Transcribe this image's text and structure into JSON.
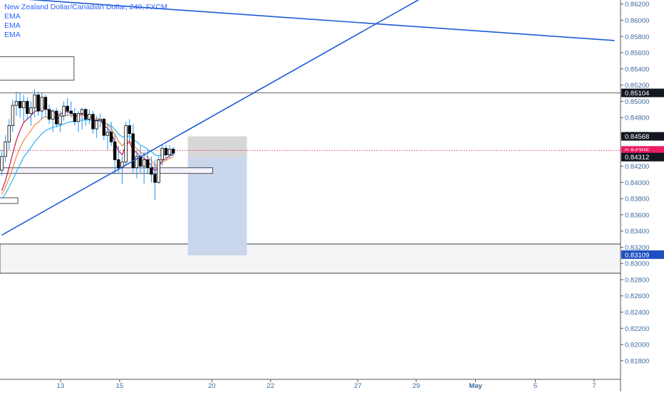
{
  "header": {
    "symbol_title": "New Zealand Dollar/Canadian Dollar, 240, FXCM",
    "indicators": [
      "EMA",
      "EMA",
      "EMA"
    ]
  },
  "colors": {
    "background": "#ffffff",
    "trendline": "#1e5bd6",
    "candle_body": "#000000",
    "candle_wick": "#2196f3",
    "ema_fast": "#c2185b",
    "ema_mid": "#ef8a3a",
    "ema_slow": "#29b6f6",
    "axis_text": "#3c6a9e",
    "current_price_bg": "#e91e63",
    "label_dark_bg": "#131722",
    "position_fill": "#c9d6ec",
    "position_top_fill": "#d7d7d7",
    "zone_fill": "#f5f5f7",
    "current_price_line": "#e91e63"
  },
  "chart_data": {
    "type": "candlestick",
    "title": "New Zealand Dollar/Canadian Dollar, 240, FXCM",
    "ylim": [
      0.8156,
      0.8625
    ],
    "y_ticks": [
      "0.86200",
      "0.86000",
      "0.85800",
      "0.85600",
      "0.85400",
      "0.85200",
      "0.85000",
      "0.84800",
      "0.84600",
      "0.84400",
      "0.84200",
      "0.84000",
      "0.83800",
      "0.83600",
      "0.83400",
      "0.83200",
      "0.83000",
      "0.82800",
      "0.82600",
      "0.82400",
      "0.82200",
      "0.82000",
      "0.81800"
    ],
    "x_ticks": [
      "13",
      "15",
      "20",
      "22",
      "27",
      "29",
      "May",
      "5",
      "7"
    ],
    "x_tick_index": [
      16.1,
      32.3,
      57.6,
      73.7,
      97.6,
      113.6,
      129.9,
      146.3,
      162.4
    ],
    "price_labels": [
      {
        "value": "0.85104",
        "style": "dark"
      },
      {
        "value": "0.84568",
        "style": "dark"
      },
      {
        "value": "0.84395",
        "style": "current"
      },
      {
        "value": "02:38:31",
        "style": "current_timer"
      },
      {
        "value": "0.84312",
        "style": "dark"
      },
      {
        "value": "0.83109",
        "style": "blue"
      }
    ],
    "horizontal_lines": [
      0.85104,
      0.8324,
      0.8288
    ],
    "current_price": 0.84395,
    "trendlines": [
      {
        "x1": 0,
        "y1": 0.8628,
        "x2": 168.0,
        "y2": 0.8575
      },
      {
        "x1": 0,
        "y1": 0.8335,
        "x2": 124.0,
        "y2": 0.865
      }
    ],
    "rectangles": [
      {
        "x1": -3,
        "x2": 19.8,
        "top": 0.8555,
        "bottom": 0.8526,
        "kind": "note"
      },
      {
        "x1": -3,
        "x2": 57.8,
        "top": 0.8418,
        "bottom": 0.8411,
        "kind": "note"
      },
      {
        "x1": -3,
        "x2": 4.4,
        "top": 0.8381,
        "bottom": 0.8374,
        "kind": "note"
      },
      {
        "x1": -3,
        "x2": 172,
        "top": 0.8324,
        "bottom": 0.8288,
        "kind": "zone"
      }
    ],
    "position": {
      "x1": 51.0,
      "x2": 67.2,
      "entry": 0.84312,
      "stop": 0.84568,
      "target": 0.831
    },
    "candles": [
      {
        "o": 0.8415,
        "h": 0.844,
        "l": 0.8408,
        "c": 0.8432
      },
      {
        "o": 0.8432,
        "h": 0.8458,
        "l": 0.8425,
        "c": 0.845
      },
      {
        "o": 0.845,
        "h": 0.8478,
        "l": 0.844,
        "c": 0.847
      },
      {
        "o": 0.847,
        "h": 0.8502,
        "l": 0.8462,
        "c": 0.8495
      },
      {
        "o": 0.8495,
        "h": 0.8512,
        "l": 0.8482,
        "c": 0.85
      },
      {
        "o": 0.85,
        "h": 0.851,
        "l": 0.848,
        "c": 0.8492
      },
      {
        "o": 0.8492,
        "h": 0.8508,
        "l": 0.8475,
        "c": 0.85
      },
      {
        "o": 0.85,
        "h": 0.8505,
        "l": 0.8478,
        "c": 0.8485
      },
      {
        "o": 0.8485,
        "h": 0.85,
        "l": 0.847,
        "c": 0.8492
      },
      {
        "o": 0.8492,
        "h": 0.8515,
        "l": 0.848,
        "c": 0.8508
      },
      {
        "o": 0.8508,
        "h": 0.8512,
        "l": 0.8482,
        "c": 0.8488
      },
      {
        "o": 0.8488,
        "h": 0.851,
        "l": 0.8478,
        "c": 0.8505
      },
      {
        "o": 0.8505,
        "h": 0.8508,
        "l": 0.848,
        "c": 0.849
      },
      {
        "o": 0.849,
        "h": 0.8496,
        "l": 0.8472,
        "c": 0.8478
      },
      {
        "o": 0.8478,
        "h": 0.849,
        "l": 0.8462,
        "c": 0.8488
      },
      {
        "o": 0.8488,
        "h": 0.8492,
        "l": 0.8468,
        "c": 0.8472
      },
      {
        "o": 0.8472,
        "h": 0.8488,
        "l": 0.8462,
        "c": 0.8482
      },
      {
        "o": 0.8482,
        "h": 0.85,
        "l": 0.8476,
        "c": 0.8494
      },
      {
        "o": 0.8494,
        "h": 0.8504,
        "l": 0.8482,
        "c": 0.8488
      },
      {
        "o": 0.8488,
        "h": 0.85,
        "l": 0.848,
        "c": 0.8485
      },
      {
        "o": 0.8485,
        "h": 0.8492,
        "l": 0.847,
        "c": 0.8475
      },
      {
        "o": 0.8475,
        "h": 0.8488,
        "l": 0.8462,
        "c": 0.8485
      },
      {
        "o": 0.8485,
        "h": 0.8492,
        "l": 0.8465,
        "c": 0.849
      },
      {
        "o": 0.849,
        "h": 0.8492,
        "l": 0.847,
        "c": 0.8478
      },
      {
        "o": 0.8478,
        "h": 0.849,
        "l": 0.8472,
        "c": 0.8484
      },
      {
        "o": 0.8484,
        "h": 0.8488,
        "l": 0.846,
        "c": 0.8466
      },
      {
        "o": 0.8466,
        "h": 0.8482,
        "l": 0.8455,
        "c": 0.8476
      },
      {
        "o": 0.8476,
        "h": 0.8485,
        "l": 0.8468,
        "c": 0.8478
      },
      {
        "o": 0.8478,
        "h": 0.848,
        "l": 0.8452,
        "c": 0.8458
      },
      {
        "o": 0.8458,
        "h": 0.847,
        "l": 0.844,
        "c": 0.8462
      },
      {
        "o": 0.8462,
        "h": 0.8475,
        "l": 0.8445,
        "c": 0.845
      },
      {
        "o": 0.845,
        "h": 0.846,
        "l": 0.841,
        "c": 0.8428
      },
      {
        "o": 0.8428,
        "h": 0.8445,
        "l": 0.8412,
        "c": 0.8418
      },
      {
        "o": 0.8418,
        "h": 0.8432,
        "l": 0.8398,
        "c": 0.8425
      },
      {
        "o": 0.8425,
        "h": 0.8475,
        "l": 0.842,
        "c": 0.847
      },
      {
        "o": 0.847,
        "h": 0.8478,
        "l": 0.845,
        "c": 0.846
      },
      {
        "o": 0.846,
        "h": 0.8472,
        "l": 0.8412,
        "c": 0.8418
      },
      {
        "o": 0.8418,
        "h": 0.844,
        "l": 0.8405,
        "c": 0.8432
      },
      {
        "o": 0.8432,
        "h": 0.8445,
        "l": 0.8412,
        "c": 0.842
      },
      {
        "o": 0.842,
        "h": 0.8438,
        "l": 0.8398,
        "c": 0.8428
      },
      {
        "o": 0.8428,
        "h": 0.844,
        "l": 0.841,
        "c": 0.8418
      },
      {
        "o": 0.8418,
        "h": 0.8432,
        "l": 0.84,
        "c": 0.841
      },
      {
        "o": 0.841,
        "h": 0.8428,
        "l": 0.8378,
        "c": 0.84
      },
      {
        "o": 0.84,
        "h": 0.8432,
        "l": 0.8398,
        "c": 0.8428
      },
      {
        "o": 0.8428,
        "h": 0.8446,
        "l": 0.842,
        "c": 0.8442
      },
      {
        "o": 0.8442,
        "h": 0.8446,
        "l": 0.843,
        "c": 0.8434
      },
      {
        "o": 0.8434,
        "h": 0.8446,
        "l": 0.843,
        "c": 0.8441
      },
      {
        "o": 0.8441,
        "h": 0.8444,
        "l": 0.8432,
        "c": 0.8436
      }
    ],
    "ema_fast": [
      0.839,
      0.8402,
      0.8418,
      0.8436,
      0.8452,
      0.8464,
      0.8474,
      0.8478,
      0.8482,
      0.8488,
      0.8488,
      0.8492,
      0.8492,
      0.8488,
      0.8488,
      0.8484,
      0.8484,
      0.8487,
      0.8487,
      0.8486,
      0.8482,
      0.8483,
      0.8485,
      0.8482,
      0.8483,
      0.8477,
      0.8477,
      0.8477,
      0.847,
      0.8467,
      0.8461,
      0.845,
      0.8439,
      0.8434,
      0.8446,
      0.845,
      0.8439,
      0.8437,
      0.8431,
      0.843,
      0.8426,
      0.8421,
      0.8414,
      0.8419,
      0.8427,
      0.8429,
      0.8433,
      0.8434
    ],
    "ema_mid": [
      0.8385,
      0.8394,
      0.8405,
      0.8418,
      0.8432,
      0.8443,
      0.8452,
      0.8458,
      0.8464,
      0.8471,
      0.8474,
      0.8479,
      0.8481,
      0.848,
      0.8481,
      0.8479,
      0.848,
      0.8482,
      0.8483,
      0.8483,
      0.8481,
      0.8482,
      0.8483,
      0.8482,
      0.8482,
      0.8479,
      0.8479,
      0.8478,
      0.8474,
      0.8471,
      0.8467,
      0.8459,
      0.8451,
      0.8445,
      0.845,
      0.8452,
      0.8445,
      0.8442,
      0.8437,
      0.8435,
      0.8431,
      0.8427,
      0.8421,
      0.8421,
      0.8425,
      0.8427,
      0.843,
      0.8431
    ],
    "ema_slow": [
      0.838,
      0.8386,
      0.8394,
      0.8403,
      0.8413,
      0.8422,
      0.8431,
      0.8437,
      0.8443,
      0.845,
      0.8455,
      0.846,
      0.8464,
      0.8466,
      0.8468,
      0.8469,
      0.847,
      0.8472,
      0.8474,
      0.8475,
      0.8475,
      0.8476,
      0.8477,
      0.8477,
      0.8477,
      0.8476,
      0.8476,
      0.8476,
      0.8474,
      0.8472,
      0.847,
      0.8465,
      0.846,
      0.8456,
      0.8457,
      0.8457,
      0.8453,
      0.845,
      0.8446,
      0.8444,
      0.8441,
      0.8438,
      0.8434,
      0.8433,
      0.8434,
      0.8434,
      0.8435,
      0.8435
    ],
    "grid": false
  }
}
